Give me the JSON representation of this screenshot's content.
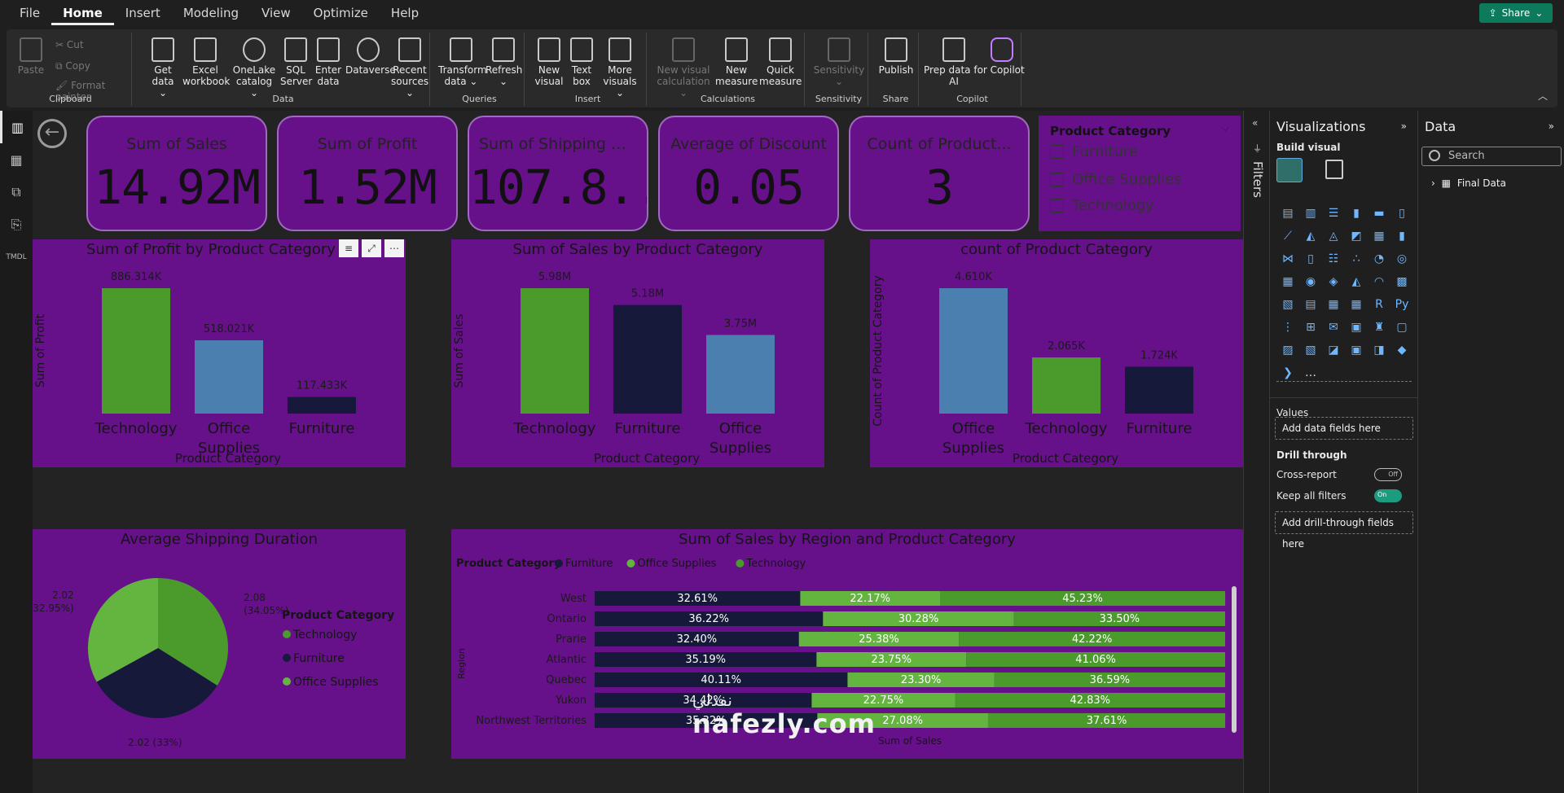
{
  "menu": {
    "items": [
      "File",
      "Home",
      "Insert",
      "Modeling",
      "View",
      "Optimize",
      "Help"
    ],
    "active": "Home",
    "share": "Share"
  },
  "ribbon": {
    "clipboard": {
      "paste": "Paste",
      "cut": "Cut",
      "copy": "Copy",
      "format_painter": "Format painter",
      "label": "Clipboard"
    },
    "data": {
      "buttons": [
        {
          "line1": "Get",
          "line2": "data ⌄"
        },
        {
          "line1": "Excel",
          "line2": "workbook"
        },
        {
          "line1": "OneLake",
          "line2": "catalog ⌄"
        },
        {
          "line1": "SQL",
          "line2": "Server"
        },
        {
          "line1": "Enter",
          "line2": "data"
        },
        {
          "line1": "Dataverse",
          "line2": ""
        },
        {
          "line1": "Recent",
          "line2": "sources ⌄"
        }
      ],
      "label": "Data"
    },
    "queries": {
      "transform": {
        "line1": "Transform",
        "line2": "data ⌄"
      },
      "refresh": {
        "line1": "Refresh",
        "line2": "⌄"
      },
      "label": "Queries"
    },
    "insert": {
      "new_visual": {
        "line1": "New",
        "line2": "visual"
      },
      "text_box": {
        "line1": "Text",
        "line2": "box"
      },
      "more_visuals": {
        "line1": "More",
        "line2": "visuals ⌄"
      },
      "label": "Insert"
    },
    "calculations": {
      "new_visual_calc": {
        "line1": "New visual",
        "line2": "calculation ⌄"
      },
      "new_measure": {
        "line1": "New",
        "line2": "measure"
      },
      "quick_measure": {
        "line1": "Quick",
        "line2": "measure"
      },
      "label": "Calculations"
    },
    "sensitivity": {
      "btn": {
        "line1": "Sensitivity",
        "line2": "⌄"
      },
      "label": "Sensitivity"
    },
    "share": {
      "publish": "Publish",
      "label": "Share"
    },
    "copilot": {
      "prep": {
        "line1": "Prep data for Copilot",
        "line2": "AI"
      },
      "copilot": "Copilot",
      "label": "Copilot"
    }
  },
  "cards": [
    {
      "label": "Sum of Sales",
      "value": "14.92M"
    },
    {
      "label": "Sum of Profit",
      "value": "1.52M"
    },
    {
      "label": "Sum of Shipping Cost",
      "value": "107.8..."
    },
    {
      "label": "Average of Discount",
      "value": "0.05"
    },
    {
      "label": "Count of Product...",
      "value": "3"
    }
  ],
  "slicer": {
    "title": "Product Category",
    "options": [
      "Furniture",
      "Office Supplies",
      "Technology"
    ]
  },
  "colors": {
    "visual_bg": "#66118a",
    "technology": "#4a9a2c",
    "office_supplies": "#4a7fb0",
    "furniture": "#16193a",
    "green_light": "#63b540"
  },
  "chart_data": [
    {
      "type": "bar",
      "title": "Sum of Profit by Product Category",
      "xlabel": "Product Category",
      "ylabel": "Sum of Profit",
      "categories": [
        "Technology",
        "Office Supplies",
        "Furniture"
      ],
      "values": [
        886314,
        518021,
        117433
      ],
      "data_labels": [
        "886.314K",
        "518.021K",
        "117.433K"
      ],
      "bar_colors": [
        "#4a9a2c",
        "#4a7fb0",
        "#16193a"
      ]
    },
    {
      "type": "bar",
      "title": "Sum of Sales by Product Category",
      "xlabel": "Product Category",
      "ylabel": "Sum of Sales",
      "categories": [
        "Technology",
        "Furniture",
        "Office Supplies"
      ],
      "values": [
        5980000,
        5180000,
        3750000
      ],
      "data_labels": [
        "5.98M",
        "5.18M",
        "3.75M"
      ],
      "bar_colors": [
        "#4a9a2c",
        "#16193a",
        "#4a7fb0"
      ]
    },
    {
      "type": "bar",
      "title": "count of Product Category",
      "xlabel": "Product Category",
      "ylabel": "Count of Product Category",
      "categories": [
        "Office Supplies",
        "Technology",
        "Furniture"
      ],
      "values": [
        4610,
        2065,
        1724
      ],
      "data_labels": [
        "4.610K",
        "2.065K",
        "1.724K"
      ],
      "bar_colors": [
        "#4a7fb0",
        "#4a9a2c",
        "#16193a"
      ]
    },
    {
      "type": "pie",
      "title": "Average Shipping Duration",
      "legend_title": "Product Category",
      "legend": [
        "Technology",
        "Furniture",
        "Office Supplies"
      ],
      "legend_placement": "right",
      "slices": [
        {
          "name": "Technology",
          "value": 2.08,
          "pct": 34.05,
          "label_value": "2.08",
          "label_pct": "(34.05%)",
          "color": "#4a9a2c"
        },
        {
          "name": "Furniture",
          "value": 2.02,
          "pct": 33.0,
          "label_value": "2.02 (33%)",
          "label_pct": "",
          "color": "#16193a"
        },
        {
          "name": "Office Supplies",
          "value": 2.02,
          "pct": 32.95,
          "label_value": "2.02",
          "label_pct": "(32.95%)",
          "color": "#63b540"
        }
      ]
    },
    {
      "type": "bar",
      "subtype": "100% stacked horizontal",
      "title": "Sum of Sales by Region and Product Category",
      "legend_title": "Product Category",
      "legend": [
        "Furniture",
        "Office Supplies",
        "Technology"
      ],
      "legend_placement": "top-left",
      "xlabel": "Sum of Sales",
      "ylabel": "Region",
      "categories": [
        "West",
        "Ontario",
        "Prarie",
        "Atlantic",
        "Quebec",
        "Yukon",
        "Northwest Territories"
      ],
      "series": [
        {
          "name": "Furniture",
          "color": "#16193a",
          "values": [
            32.61,
            36.22,
            32.4,
            35.19,
            40.11,
            34.42,
            35.32
          ],
          "labels": [
            "32.61%",
            "36.22%",
            "32.40%",
            "35.19%",
            "40.11%",
            "34.42%",
            "35.32%"
          ]
        },
        {
          "name": "Office Supplies",
          "color": "#63b540",
          "values": [
            22.17,
            30.28,
            25.38,
            23.75,
            23.3,
            22.75,
            27.08
          ],
          "labels": [
            "22.17%",
            "30.28%",
            "25.38%",
            "23.75%",
            "23.30%",
            "22.75%",
            "27.08%"
          ]
        },
        {
          "name": "Technology",
          "color": "#4a9a2c",
          "values": [
            45.23,
            33.5,
            42.22,
            41.06,
            36.59,
            42.83,
            37.61
          ],
          "labels": [
            "45.23%",
            "33.50%",
            "42.22%",
            "41.06%",
            "36.59%",
            "42.83%",
            "37.61%"
          ]
        }
      ]
    }
  ],
  "filters": {
    "label": "Filters"
  },
  "visualizations": {
    "title": "Visualizations",
    "build": "Build visual",
    "values_label": "Values",
    "add_data": "Add data fields here",
    "drill_through": "Drill through",
    "cross_report": "Cross-report",
    "cross_report_state": "Off",
    "keep_filters": "Keep all filters",
    "keep_filters_state": "On",
    "add_drill": "Add drill-through fields here",
    "more": "..."
  },
  "data_pane": {
    "title": "Data",
    "search_placeholder": "Search",
    "table": "Final Data"
  },
  "watermark": {
    "arabic": "نفذلي",
    "text": "nafezly.com"
  }
}
